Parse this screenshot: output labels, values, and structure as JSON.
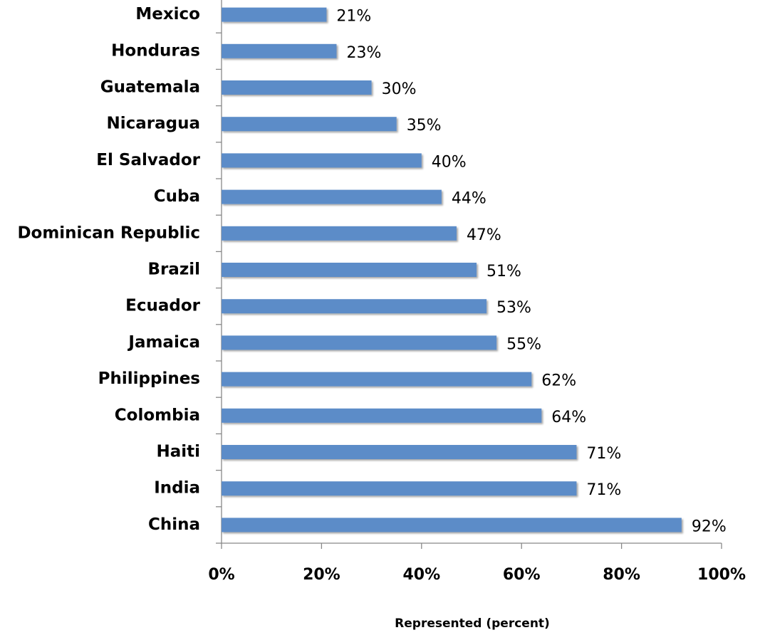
{
  "chart_data": {
    "type": "barh",
    "categories": [
      "Mexico",
      "Honduras",
      "Guatemala",
      "Nicaragua",
      "El Salvador",
      "Cuba",
      "Dominican Republic",
      "Brazil",
      "Ecuador",
      "Jamaica",
      "Philippines",
      "Colombia",
      "Haiti",
      "India",
      "China"
    ],
    "values": [
      21,
      23,
      30,
      35,
      40,
      44,
      47,
      51,
      53,
      55,
      62,
      64,
      71,
      71,
      92
    ],
    "value_labels": [
      "21%",
      "23%",
      "30%",
      "35%",
      "40%",
      "44%",
      "47%",
      "51%",
      "53%",
      "55%",
      "62%",
      "64%",
      "71%",
      "71%",
      "92%"
    ],
    "color": "#5b8cc8",
    "xlabel": "Represented (percent)",
    "xlim": [
      0,
      100
    ],
    "xticks": [
      {
        "value": 0,
        "label": "0%"
      },
      {
        "value": 20,
        "label": "20%"
      },
      {
        "value": 40,
        "label": "40%"
      },
      {
        "value": 60,
        "label": "60%"
      },
      {
        "value": 80,
        "label": "80%"
      },
      {
        "value": 100,
        "label": "100%"
      }
    ]
  }
}
